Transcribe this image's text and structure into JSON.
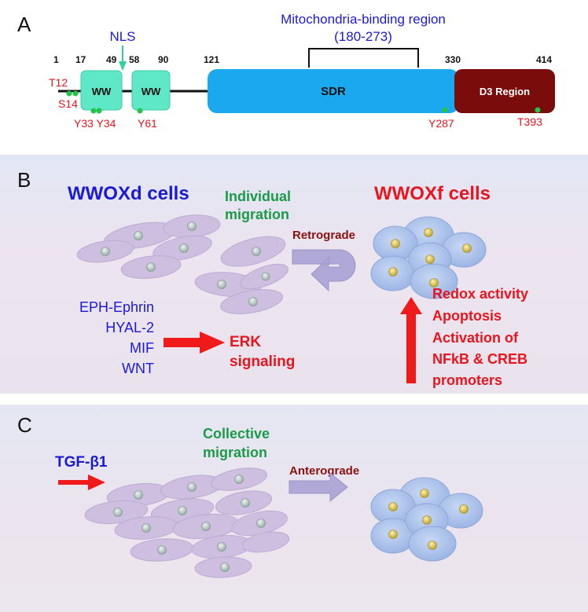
{
  "panel_a": {
    "letter": "A",
    "nls_label": "NLS",
    "mito_label_1": "Mitochondria-binding region",
    "mito_label_2": "(180-273)",
    "positions": [
      "1",
      "17",
      "49",
      "58",
      "90",
      "121",
      "330",
      "414"
    ],
    "domains": {
      "ww1": "WW",
      "ww2": "WW",
      "sdr": "SDR",
      "d3": "D3 Region"
    },
    "sites": [
      "T12",
      "S14",
      "Y33 Y34",
      "Y61",
      "Y287",
      "T393"
    ]
  },
  "panel_b": {
    "letter": "B",
    "wwoxd_title": "WWOXd cells",
    "wwoxf_title": "WWOXf cells",
    "individual_1": "Individual",
    "individual_2": "migration",
    "retrograde": "Retrograde",
    "factors": [
      "EPH-Ephrin",
      "HYAL-2",
      "MIF",
      "WNT"
    ],
    "erk_1": "ERK",
    "erk_2": "signaling",
    "effects": [
      "Redox activity",
      "Apoptosis",
      "Activation of",
      "NFkB & CREB",
      "promoters"
    ]
  },
  "panel_c": {
    "letter": "C",
    "tgf": "TGF-β1",
    "collective_1": "Collective",
    "collective_2": "migration",
    "anterograde": "Anterograde"
  },
  "colors": {
    "blue_text": "#1a1ad6",
    "green_text": "#1b9a4a",
    "red_text": "#e8141e",
    "dark_red": "#8a1010",
    "ww_fill": "#5fe8c8",
    "sdr_fill": "#1aa8ee",
    "d3_fill": "#7a0c0c"
  }
}
